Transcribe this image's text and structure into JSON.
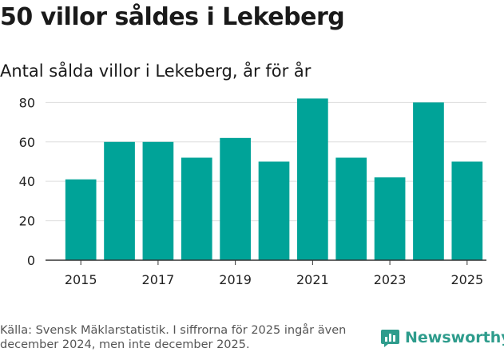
{
  "title": "50 villor såldes i Lekeberg",
  "subtitle": "Antal sålda villor i Lekeberg, år för år",
  "footer": "Källa: Svensk Mäklarstatistik. I siffrorna för 2025 ingår även december 2024, men inte december 2025.",
  "brand": {
    "name": "Newsworthy",
    "icon": "newsworthy-logo-icon"
  },
  "colors": {
    "bar": "#00a398",
    "grid": "#dddddd",
    "axis": "#333333",
    "brand": "#2e9c8c"
  },
  "chart_data": {
    "type": "bar",
    "title": "50 villor såldes i Lekeberg",
    "subtitle": "Antal sålda villor i Lekeberg, år för år",
    "xlabel": "",
    "ylabel": "",
    "categories": [
      "2015",
      "2016",
      "2017",
      "2018",
      "2019",
      "2020",
      "2021",
      "2022",
      "2023",
      "2024",
      "2025"
    ],
    "values": [
      41,
      60,
      60,
      52,
      62,
      50,
      82,
      52,
      42,
      80,
      50
    ],
    "xticks": [
      "2015",
      "2017",
      "2019",
      "2021",
      "2023",
      "2025"
    ],
    "yticks": [
      0,
      20,
      40,
      60,
      80
    ],
    "ylim": [
      0,
      85
    ],
    "grid": true
  }
}
